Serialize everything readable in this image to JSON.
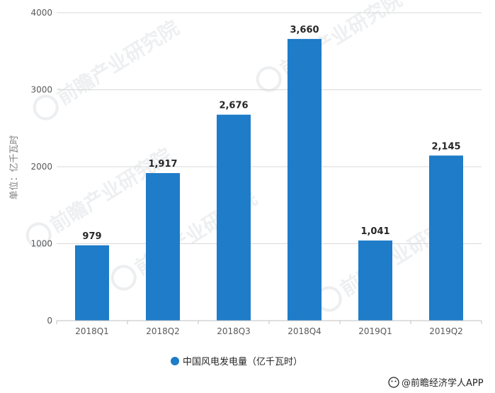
{
  "chart_data": {
    "type": "bar",
    "categories": [
      "2018Q1",
      "2018Q2",
      "2018Q3",
      "2018Q4",
      "2019Q1",
      "2019Q2"
    ],
    "series": [
      {
        "name": "中国风电发电量（亿千瓦时）",
        "values": [
          979,
          1917,
          2676,
          3660,
          1041,
          2145
        ],
        "color": "#1e7cc8"
      }
    ],
    "data_labels": [
      "979",
      "1,917",
      "2,676",
      "3,660",
      "1,041",
      "2,145"
    ],
    "ylabel": "单位：亿千瓦时",
    "ylim": [
      0,
      4000
    ],
    "yticks": [
      0,
      1000,
      2000,
      3000,
      4000
    ],
    "grid": true,
    "legend_position": "bottom"
  },
  "legend": {
    "label": "中国风电发电量（亿千瓦时）",
    "marker_color": "#1e7cc8"
  },
  "source": {
    "text": "@前瞻经济学人APP",
    "icon": "wechat-icon"
  },
  "watermark": {
    "text": "前瞻产业研究院",
    "icon": "qianzhan-logo-icon"
  }
}
